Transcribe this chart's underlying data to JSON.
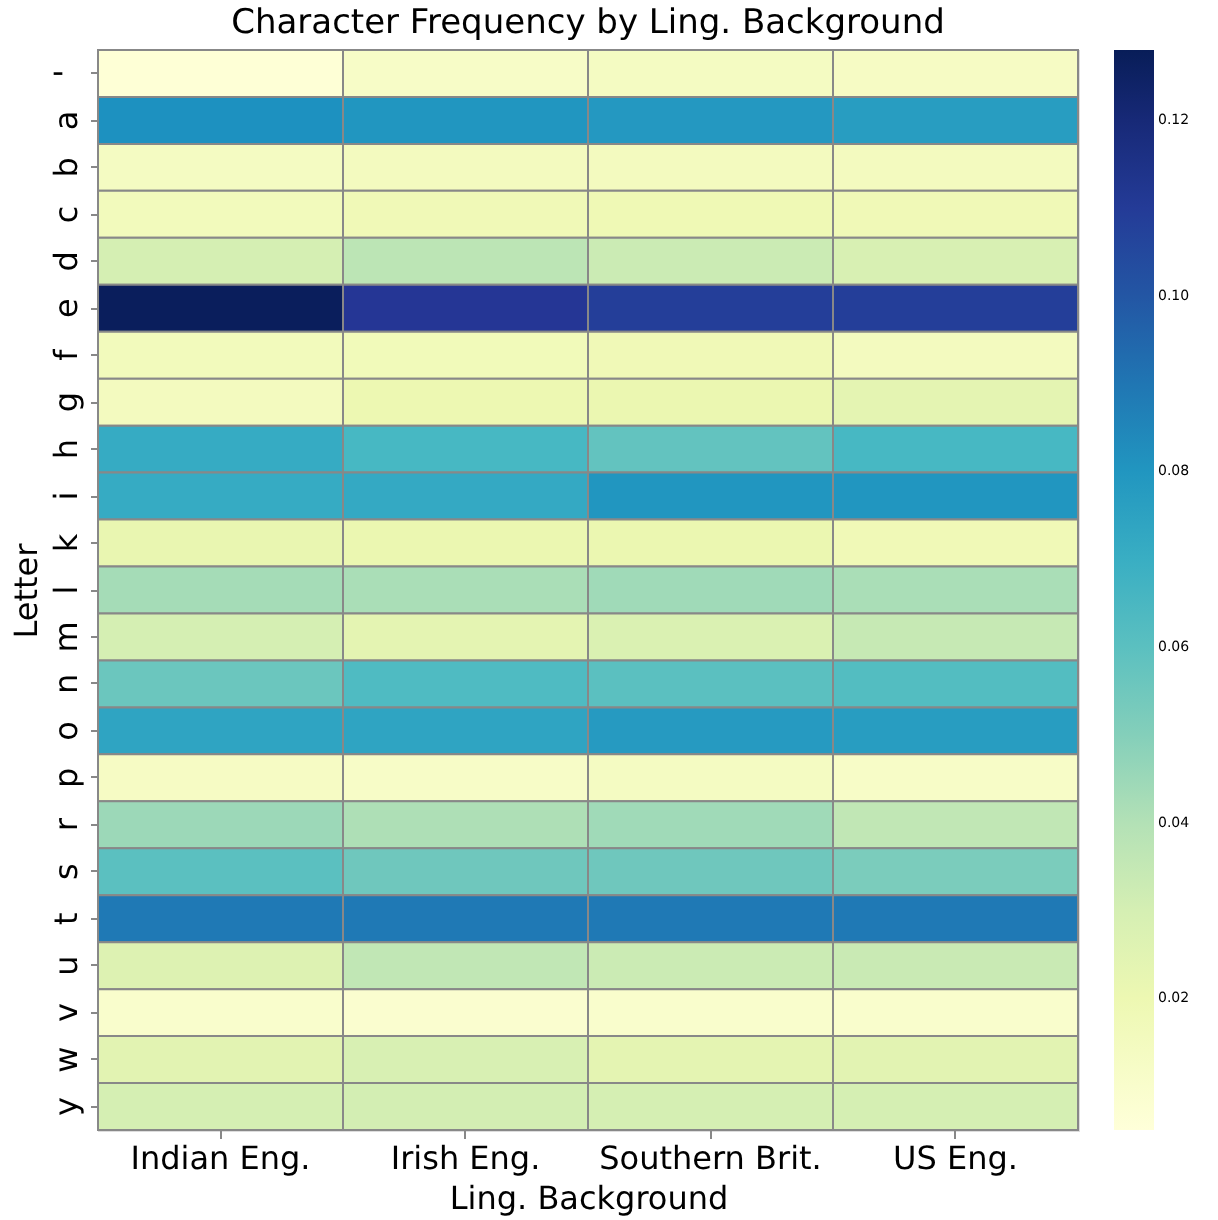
{
  "chart_data": {
    "type": "heatmap",
    "title": "Character Frequency by Ling. Background",
    "xlabel": "Ling. Background",
    "ylabel": "Letter",
    "categories": [
      "Indian Eng.",
      "Irish Eng.",
      "Southern Brit.",
      "US Eng."
    ],
    "y_categories": [
      "'",
      "a",
      "b",
      "c",
      "d",
      "e",
      "f",
      "g",
      "h",
      "i",
      "k",
      "l",
      "m",
      "n",
      "o",
      "p",
      "r",
      "s",
      "t",
      "u",
      "v",
      "w",
      "y"
    ],
    "cells": [
      [
        0.006,
        0.012,
        0.014,
        0.013
      ],
      [
        0.082,
        0.08,
        0.079,
        0.077
      ],
      [
        0.014,
        0.015,
        0.015,
        0.015
      ],
      [
        0.016,
        0.018,
        0.019,
        0.018
      ],
      [
        0.03,
        0.038,
        0.034,
        0.029
      ],
      [
        0.127,
        0.112,
        0.109,
        0.109
      ],
      [
        0.016,
        0.017,
        0.018,
        0.015
      ],
      [
        0.015,
        0.02,
        0.021,
        0.024
      ],
      [
        0.071,
        0.065,
        0.058,
        0.065
      ],
      [
        0.071,
        0.072,
        0.08,
        0.08
      ],
      [
        0.022,
        0.021,
        0.021,
        0.018
      ],
      [
        0.043,
        0.042,
        0.044,
        0.042
      ],
      [
        0.03,
        0.024,
        0.028,
        0.036
      ],
      [
        0.056,
        0.063,
        0.06,
        0.062
      ],
      [
        0.074,
        0.074,
        0.078,
        0.077
      ],
      [
        0.013,
        0.012,
        0.014,
        0.012
      ],
      [
        0.045,
        0.041,
        0.044,
        0.037
      ],
      [
        0.06,
        0.055,
        0.055,
        0.052
      ],
      [
        0.089,
        0.089,
        0.089,
        0.089
      ],
      [
        0.027,
        0.037,
        0.034,
        0.035
      ],
      [
        0.01,
        0.009,
        0.01,
        0.01
      ],
      [
        0.025,
        0.029,
        0.024,
        0.025
      ],
      [
        0.03,
        0.031,
        0.03,
        0.03
      ]
    ],
    "clim": [
      0.005,
      0.128
    ],
    "cticks": [
      0.02,
      0.04,
      0.06,
      0.08,
      {
        "value": 0.1,
        "label": "0.10"
      },
      0.12
    ]
  }
}
